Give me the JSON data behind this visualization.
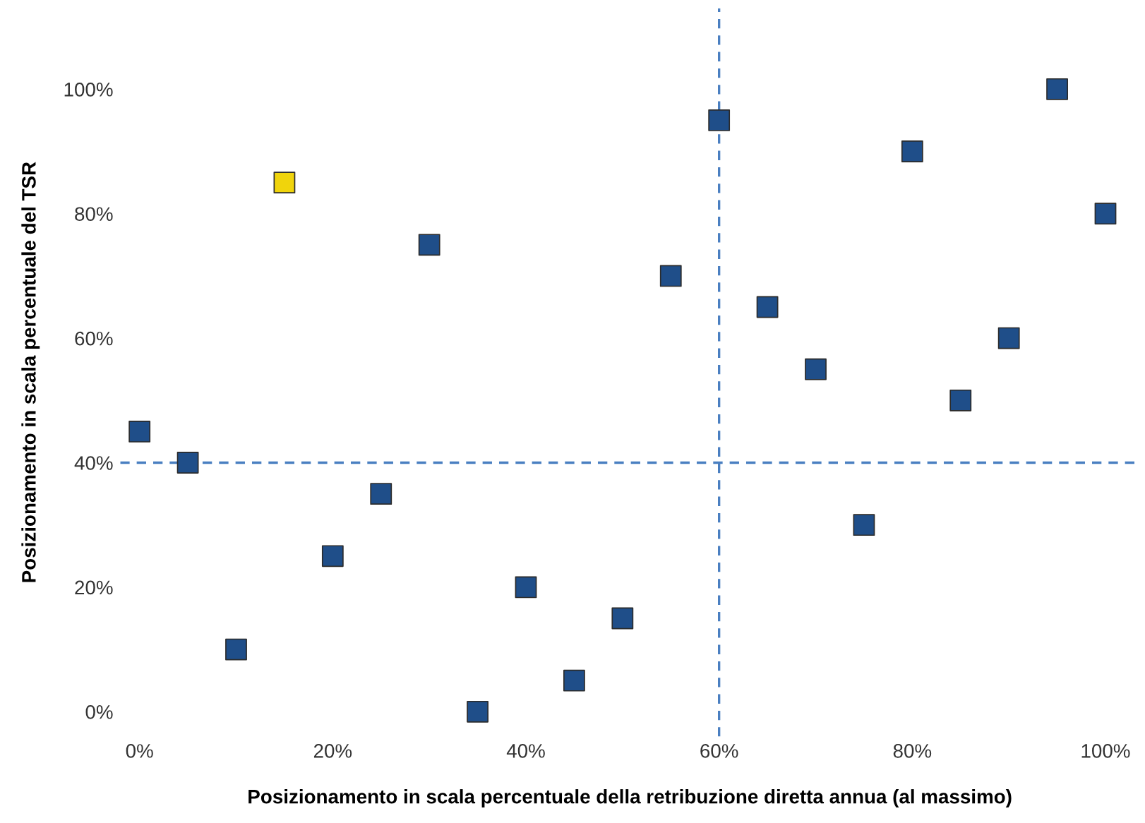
{
  "chart_data": {
    "type": "scatter",
    "xlabel": "Posizionamento in scala percentuale della retribuzione diretta annua (al massimo)",
    "ylabel": "Posizionamento in scala percentuale del TSR",
    "x": [
      0,
      5,
      10,
      15,
      20,
      25,
      30,
      35,
      40,
      45,
      50,
      55,
      60,
      65,
      70,
      75,
      80,
      85,
      90,
      95,
      100
    ],
    "values": [
      45,
      40,
      10,
      85,
      25,
      35,
      75,
      0,
      20,
      5,
      15,
      70,
      95,
      65,
      55,
      30,
      90,
      50,
      60,
      100,
      80
    ],
    "colors": [
      "#1f4e89",
      "#1f4e89",
      "#1f4e89",
      "#f0d40c",
      "#1f4e89",
      "#1f4e89",
      "#1f4e89",
      "#1f4e89",
      "#1f4e89",
      "#1f4e89",
      "#1f4e89",
      "#1f4e89",
      "#1f4e89",
      "#1f4e89",
      "#1f4e89",
      "#1f4e89",
      "#1f4e89",
      "#1f4e89",
      "#1f4e89",
      "#1f4e89",
      "#1f4e89"
    ],
    "marker": "square",
    "xlim": [
      -2,
      103.5
    ],
    "ylim": [
      -4,
      113
    ],
    "xticks": [
      {
        "value": 0,
        "label": "0%"
      },
      {
        "value": 20,
        "label": "20%"
      },
      {
        "value": 40,
        "label": "40%"
      },
      {
        "value": 60,
        "label": "60%"
      },
      {
        "value": 80,
        "label": "80%"
      },
      {
        "value": 100,
        "label": "100%"
      }
    ],
    "yticks": [
      {
        "value": 0,
        "label": "0%"
      },
      {
        "value": 20,
        "label": "20%"
      },
      {
        "value": 40,
        "label": "40%"
      },
      {
        "value": 60,
        "label": "60%"
      },
      {
        "value": 80,
        "label": "80%"
      },
      {
        "value": 100,
        "label": "100%"
      }
    ],
    "ref_lines": [
      {
        "axis": "x",
        "value": 60,
        "color": "#4a7fc1",
        "line_style": "dashed"
      },
      {
        "axis": "y",
        "value": 40,
        "color": "#4a7fc1",
        "line_style": "dashed"
      }
    ],
    "grid": false,
    "legend": false
  }
}
